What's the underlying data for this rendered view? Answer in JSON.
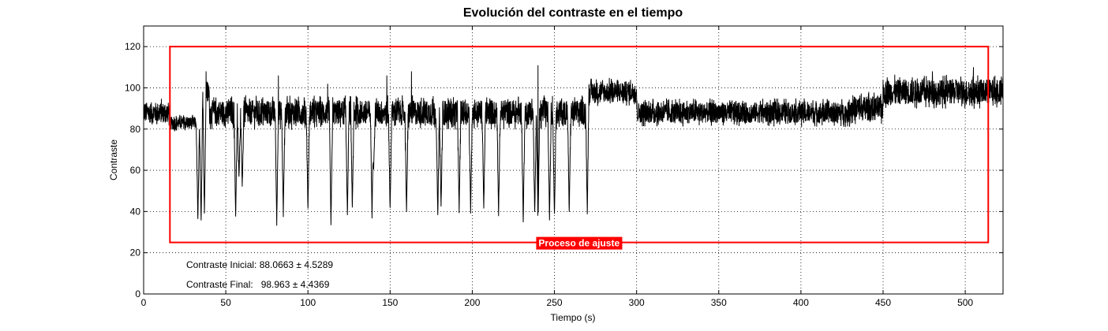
{
  "chart_data": {
    "type": "line",
    "title": "Evolución del contraste en el tiempo",
    "xlabel": "Tiempo (s)",
    "ylabel": "Contraste",
    "xlim": [
      0,
      523
    ],
    "ylim": [
      0,
      130
    ],
    "xticks": [
      0,
      50,
      100,
      150,
      200,
      250,
      300,
      350,
      400,
      450,
      500
    ],
    "yticks": [
      0,
      20,
      40,
      60,
      80,
      100,
      120
    ],
    "grid": true,
    "line_color": "#000000",
    "series": [
      {
        "name": "",
        "baseline_segments": [
          {
            "x": [
              0,
              16
            ],
            "center": 88,
            "amplitude": 5
          },
          {
            "x": [
              16,
              35
            ],
            "center": 83,
            "amplitude": 3
          },
          {
            "x": [
              35,
              40
            ],
            "center": 98,
            "amplitude": 5
          },
          {
            "x": [
              40,
              270
            ],
            "center": 88,
            "amplitude": 6
          },
          {
            "x": [
              270,
              300
            ],
            "center": 98,
            "amplitude": 5
          },
          {
            "x": [
              300,
              430
            ],
            "center": 88,
            "amplitude": 5
          },
          {
            "x": [
              430,
              450
            ],
            "center": 90,
            "amplitude": 6
          },
          {
            "x": [
              450,
              523
            ],
            "center": 98,
            "amplitude": 6
          }
        ],
        "dips": [
          {
            "x": 33,
            "min": 34
          },
          {
            "x": 35,
            "min": 33
          },
          {
            "x": 37,
            "min": 37
          },
          {
            "x": 56,
            "min": 36
          },
          {
            "x": 58,
            "min": 55
          },
          {
            "x": 60,
            "min": 50
          },
          {
            "x": 81,
            "min": 33
          },
          {
            "x": 85,
            "min": 37
          },
          {
            "x": 100,
            "min": 39
          },
          {
            "x": 114,
            "min": 33
          },
          {
            "x": 124,
            "min": 36
          },
          {
            "x": 127,
            "min": 40
          },
          {
            "x": 139,
            "min": 36
          },
          {
            "x": 140,
            "min": 60
          },
          {
            "x": 150,
            "min": 39
          },
          {
            "x": 160,
            "min": 38
          },
          {
            "x": 179,
            "min": 36
          },
          {
            "x": 181,
            "min": 40
          },
          {
            "x": 192,
            "min": 39
          },
          {
            "x": 199,
            "min": 39
          },
          {
            "x": 207,
            "min": 40
          },
          {
            "x": 216,
            "min": 37
          },
          {
            "x": 231,
            "min": 33
          },
          {
            "x": 238,
            "min": 37
          },
          {
            "x": 240,
            "min": 33
          },
          {
            "x": 247,
            "min": 35
          },
          {
            "x": 250,
            "min": 36
          },
          {
            "x": 259,
            "min": 37
          },
          {
            "x": 270,
            "min": 38
          }
        ],
        "spikes": [
          {
            "x": 38,
            "max": 108
          },
          {
            "x": 82,
            "max": 106
          },
          {
            "x": 112,
            "max": 102
          },
          {
            "x": 148,
            "max": 106
          },
          {
            "x": 163,
            "max": 108
          },
          {
            "x": 240,
            "max": 111
          },
          {
            "x": 480,
            "max": 108
          },
          {
            "x": 505,
            "max": 110
          }
        ]
      }
    ],
    "annotations": {
      "box": {
        "x": [
          16,
          514
        ],
        "y": [
          25,
          120
        ],
        "color": "#ff0000"
      },
      "box_label": {
        "text": "Proceso de ajuste",
        "background": "#ff0000",
        "color": "#ffffff"
      },
      "initial": "Contraste Inicial: 88.0663 ± 4.5289",
      "final": "Contraste Final:   98.963 ± 4.4369"
    }
  }
}
